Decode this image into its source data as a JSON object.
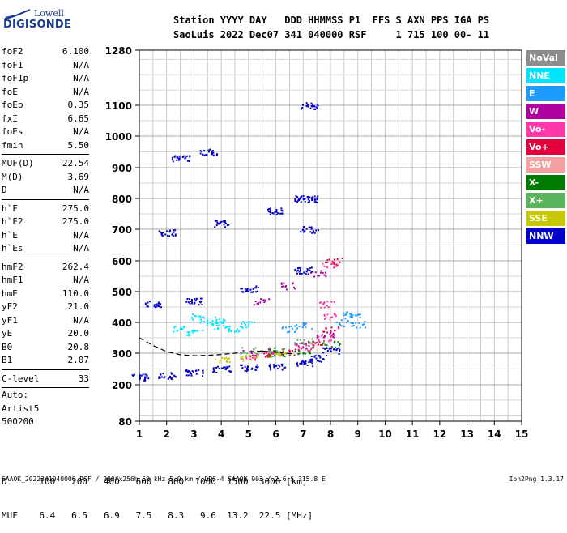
{
  "logo": {
    "top": "Lowell",
    "bottom": "DIGISONDE"
  },
  "header": {
    "col_labels": [
      "Station",
      "YYYY",
      "DAY",
      "DDD",
      "HHMMSS",
      "P1",
      "FFS",
      "S",
      "AXN",
      "PPS",
      "IGA",
      "PS"
    ],
    "col_values": [
      "SaoLuis",
      "2022",
      "Dec07",
      "341",
      "040000",
      "RSF",
      "1",
      "715",
      "100",
      "00-",
      "11"
    ],
    "line1": "Station YYYY DAY   DDD HHMMSS P1  FFS S AXN PPS IGA PS",
    "line2": "SaoLuis 2022 Dec07 341 040000 RSF     1 715 100 00- 11"
  },
  "params_group1": [
    {
      "name": "foF2",
      "value": "6.100"
    },
    {
      "name": "foF1",
      "value": "N/A"
    },
    {
      "name": "foF1p",
      "value": "N/A"
    },
    {
      "name": "foE",
      "value": "N/A"
    },
    {
      "name": "foEp",
      "value": "0.35"
    },
    {
      "name": "fxI",
      "value": "6.65"
    },
    {
      "name": "foEs",
      "value": "N/A"
    },
    {
      "name": "fmin",
      "value": "5.50"
    }
  ],
  "params_group2": [
    {
      "name": "MUF(D)",
      "value": "22.54"
    },
    {
      "name": "M(D)",
      "value": "3.69"
    },
    {
      "name": "D",
      "value": "N/A"
    }
  ],
  "params_group3": [
    {
      "name": "h`F",
      "value": "275.0"
    },
    {
      "name": "h`F2",
      "value": "275.0"
    },
    {
      "name": "h`E",
      "value": "N/A"
    },
    {
      "name": "h`Es",
      "value": "N/A"
    }
  ],
  "params_group4": [
    {
      "name": "hmF2",
      "value": "262.4"
    },
    {
      "name": "hmF1",
      "value": "N/A"
    },
    {
      "name": "hmE",
      "value": "110.0"
    },
    {
      "name": "yF2",
      "value": "21.0"
    },
    {
      "name": "yF1",
      "value": "N/A"
    },
    {
      "name": "yE",
      "value": "20.0"
    },
    {
      "name": "B0",
      "value": "20.8"
    },
    {
      "name": "B1",
      "value": "2.07"
    }
  ],
  "params_group5": [
    {
      "name": "C-level",
      "value": "33"
    }
  ],
  "autoscaler": [
    "Auto:",
    "Artist5",
    "500200"
  ],
  "legend": [
    {
      "label": "NoVal",
      "color": "#8c8c8c"
    },
    {
      "label": "NNE",
      "color": "#00e5ff"
    },
    {
      "label": "E",
      "color": "#1e9bff"
    },
    {
      "label": "W",
      "color": "#b000a0"
    },
    {
      "label": "Vo-",
      "color": "#ff3aa8"
    },
    {
      "label": "Vo+",
      "color": "#e0003c"
    },
    {
      "label": "SSW",
      "color": "#f5a0a0"
    },
    {
      "label": "X-",
      "color": "#007a00"
    },
    {
      "label": "X+",
      "color": "#5ab45a"
    },
    {
      "label": "SSE",
      "color": "#c8c800"
    },
    {
      "label": "NNW",
      "color": "#0000c8"
    }
  ],
  "d_muf": {
    "d_label": "D",
    "d_values": [
      "100",
      "200",
      "400",
      "600",
      "800",
      "1000",
      "1500",
      "3000"
    ],
    "d_unit": "[km]",
    "muf_label": "MUF",
    "muf_values": [
      "6.4",
      "6.5",
      "6.9",
      "7.5",
      "8.3",
      "9.6",
      "13.2",
      "22.5"
    ],
    "muf_unit": "[MHz]"
  },
  "footer": "SAAOK_2022341040000.RSF / 280fx256h 50 kHz 5.0 km / DPS-4 SAAOK 903 / 2.6 S 315.8 E",
  "version": "Ion2Png 1.3.17",
  "chart_data": {
    "type": "scatter",
    "title": "",
    "xlabel": "",
    "ylabel": "",
    "x_unit": "MHz",
    "y_unit": "km",
    "xlim": [
      1,
      15
    ],
    "ylim": [
      80,
      1280
    ],
    "y_scale": "virtual-height (log-like)",
    "x_ticks": [
      1,
      2,
      3,
      4,
      5,
      6,
      7,
      8,
      9,
      10,
      11,
      12,
      13,
      14,
      15
    ],
    "y_ticks": [
      80,
      200,
      300,
      400,
      500,
      600,
      700,
      800,
      900,
      1000,
      1100,
      1280
    ],
    "grid": true,
    "legend_position": "right",
    "series": [
      {
        "name": "NNE",
        "points": [
          [
            2.5,
            380
          ],
          [
            3.0,
            370
          ],
          [
            3.5,
            400
          ],
          [
            4.0,
            390
          ],
          [
            4.5,
            380
          ],
          [
            5.0,
            395
          ],
          [
            3.2,
            420
          ],
          [
            3.8,
            410
          ]
        ]
      },
      {
        "name": "E",
        "points": [
          [
            8.5,
            400
          ],
          [
            8.8,
            420
          ],
          [
            9.0,
            395
          ],
          [
            8.7,
            430
          ],
          [
            6.5,
            380
          ],
          [
            7.0,
            390
          ]
        ]
      },
      {
        "name": "W",
        "points": [
          [
            5.0,
            300
          ],
          [
            6.0,
            310
          ],
          [
            7.0,
            330
          ],
          [
            7.8,
            360
          ],
          [
            5.5,
            470
          ],
          [
            6.5,
            520
          ],
          [
            7.5,
            560
          ]
        ]
      },
      {
        "name": "Vo-",
        "points": [
          [
            5.0,
            290
          ],
          [
            6.0,
            300
          ],
          [
            7.0,
            320
          ],
          [
            7.8,
            350
          ],
          [
            8.0,
            420
          ],
          [
            7.8,
            460
          ],
          [
            8.0,
            590
          ]
        ]
      },
      {
        "name": "Vo+",
        "points": [
          [
            5.5,
            295
          ],
          [
            6.5,
            305
          ],
          [
            7.5,
            330
          ],
          [
            8.0,
            380
          ],
          [
            8.1,
            600
          ]
        ]
      },
      {
        "name": "X-",
        "points": [
          [
            6.0,
            300
          ],
          [
            7.0,
            310
          ],
          [
            8.0,
            330
          ]
        ]
      },
      {
        "name": "X+",
        "points": [
          [
            5.0,
            310
          ],
          [
            6.0,
            310
          ],
          [
            7.0,
            340
          ]
        ]
      },
      {
        "name": "SSE",
        "points": [
          [
            4.0,
            280
          ],
          [
            5.0,
            285
          ],
          [
            6.0,
            300
          ]
        ]
      },
      {
        "name": "NNW",
        "points": [
          [
            1.0,
            225
          ],
          [
            2.0,
            230
          ],
          [
            3.0,
            240
          ],
          [
            4.0,
            250
          ],
          [
            5.0,
            255
          ],
          [
            6.0,
            260
          ],
          [
            7.0,
            270
          ],
          [
            7.5,
            285
          ],
          [
            8.0,
            310
          ],
          [
            1.5,
            460
          ],
          [
            3.0,
            470
          ],
          [
            5.0,
            510
          ],
          [
            7.0,
            570
          ],
          [
            2.0,
            690
          ],
          [
            4.0,
            720
          ],
          [
            6.0,
            760
          ],
          [
            7.0,
            800
          ],
          [
            2.5,
            930
          ],
          [
            3.5,
            950
          ],
          [
            7.2,
            1100
          ],
          [
            7.2,
            800
          ],
          [
            7.2,
            700
          ]
        ]
      }
    ]
  }
}
